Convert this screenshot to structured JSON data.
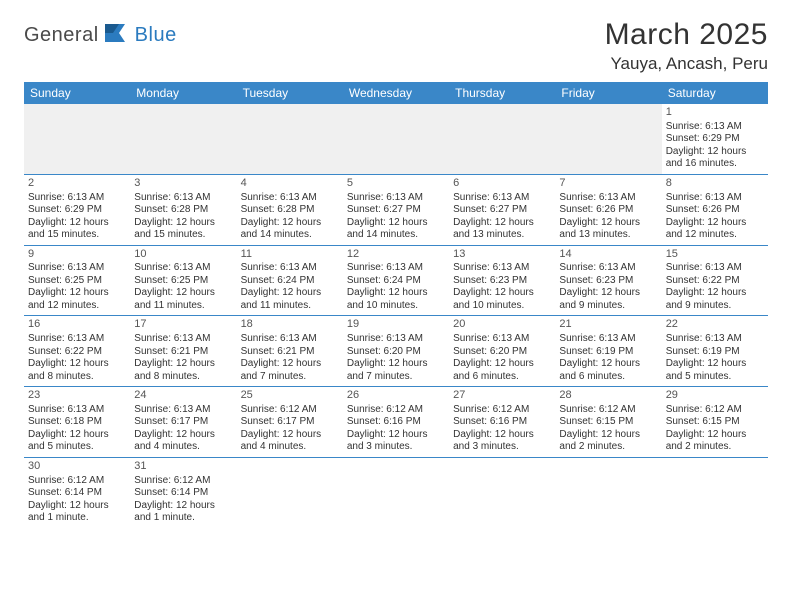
{
  "logo": {
    "part1": "General",
    "part2": "Blue"
  },
  "title": "March 2025",
  "location": "Yauya, Ancash, Peru",
  "colors": {
    "header_bg": "#3a87c8",
    "header_text": "#ffffff",
    "border": "#3a87c8",
    "brand_blue": "#2b7bbf",
    "text": "#333333",
    "empty_bg": "#f0f0f0"
  },
  "day_headers": [
    "Sunday",
    "Monday",
    "Tuesday",
    "Wednesday",
    "Thursday",
    "Friday",
    "Saturday"
  ],
  "weeks": [
    [
      null,
      null,
      null,
      null,
      null,
      null,
      {
        "d": "1",
        "sr": "6:13 AM",
        "ss": "6:29 PM",
        "dl1": "Daylight: 12 hours",
        "dl2": "and 16 minutes."
      }
    ],
    [
      {
        "d": "2",
        "sr": "6:13 AM",
        "ss": "6:29 PM",
        "dl1": "Daylight: 12 hours",
        "dl2": "and 15 minutes."
      },
      {
        "d": "3",
        "sr": "6:13 AM",
        "ss": "6:28 PM",
        "dl1": "Daylight: 12 hours",
        "dl2": "and 15 minutes."
      },
      {
        "d": "4",
        "sr": "6:13 AM",
        "ss": "6:28 PM",
        "dl1": "Daylight: 12 hours",
        "dl2": "and 14 minutes."
      },
      {
        "d": "5",
        "sr": "6:13 AM",
        "ss": "6:27 PM",
        "dl1": "Daylight: 12 hours",
        "dl2": "and 14 minutes."
      },
      {
        "d": "6",
        "sr": "6:13 AM",
        "ss": "6:27 PM",
        "dl1": "Daylight: 12 hours",
        "dl2": "and 13 minutes."
      },
      {
        "d": "7",
        "sr": "6:13 AM",
        "ss": "6:26 PM",
        "dl1": "Daylight: 12 hours",
        "dl2": "and 13 minutes."
      },
      {
        "d": "8",
        "sr": "6:13 AM",
        "ss": "6:26 PM",
        "dl1": "Daylight: 12 hours",
        "dl2": "and 12 minutes."
      }
    ],
    [
      {
        "d": "9",
        "sr": "6:13 AM",
        "ss": "6:25 PM",
        "dl1": "Daylight: 12 hours",
        "dl2": "and 12 minutes."
      },
      {
        "d": "10",
        "sr": "6:13 AM",
        "ss": "6:25 PM",
        "dl1": "Daylight: 12 hours",
        "dl2": "and 11 minutes."
      },
      {
        "d": "11",
        "sr": "6:13 AM",
        "ss": "6:24 PM",
        "dl1": "Daylight: 12 hours",
        "dl2": "and 11 minutes."
      },
      {
        "d": "12",
        "sr": "6:13 AM",
        "ss": "6:24 PM",
        "dl1": "Daylight: 12 hours",
        "dl2": "and 10 minutes."
      },
      {
        "d": "13",
        "sr": "6:13 AM",
        "ss": "6:23 PM",
        "dl1": "Daylight: 12 hours",
        "dl2": "and 10 minutes."
      },
      {
        "d": "14",
        "sr": "6:13 AM",
        "ss": "6:23 PM",
        "dl1": "Daylight: 12 hours",
        "dl2": "and 9 minutes."
      },
      {
        "d": "15",
        "sr": "6:13 AM",
        "ss": "6:22 PM",
        "dl1": "Daylight: 12 hours",
        "dl2": "and 9 minutes."
      }
    ],
    [
      {
        "d": "16",
        "sr": "6:13 AM",
        "ss": "6:22 PM",
        "dl1": "Daylight: 12 hours",
        "dl2": "and 8 minutes."
      },
      {
        "d": "17",
        "sr": "6:13 AM",
        "ss": "6:21 PM",
        "dl1": "Daylight: 12 hours",
        "dl2": "and 8 minutes."
      },
      {
        "d": "18",
        "sr": "6:13 AM",
        "ss": "6:21 PM",
        "dl1": "Daylight: 12 hours",
        "dl2": "and 7 minutes."
      },
      {
        "d": "19",
        "sr": "6:13 AM",
        "ss": "6:20 PM",
        "dl1": "Daylight: 12 hours",
        "dl2": "and 7 minutes."
      },
      {
        "d": "20",
        "sr": "6:13 AM",
        "ss": "6:20 PM",
        "dl1": "Daylight: 12 hours",
        "dl2": "and 6 minutes."
      },
      {
        "d": "21",
        "sr": "6:13 AM",
        "ss": "6:19 PM",
        "dl1": "Daylight: 12 hours",
        "dl2": "and 6 minutes."
      },
      {
        "d": "22",
        "sr": "6:13 AM",
        "ss": "6:19 PM",
        "dl1": "Daylight: 12 hours",
        "dl2": "and 5 minutes."
      }
    ],
    [
      {
        "d": "23",
        "sr": "6:13 AM",
        "ss": "6:18 PM",
        "dl1": "Daylight: 12 hours",
        "dl2": "and 5 minutes."
      },
      {
        "d": "24",
        "sr": "6:13 AM",
        "ss": "6:17 PM",
        "dl1": "Daylight: 12 hours",
        "dl2": "and 4 minutes."
      },
      {
        "d": "25",
        "sr": "6:12 AM",
        "ss": "6:17 PM",
        "dl1": "Daylight: 12 hours",
        "dl2": "and 4 minutes."
      },
      {
        "d": "26",
        "sr": "6:12 AM",
        "ss": "6:16 PM",
        "dl1": "Daylight: 12 hours",
        "dl2": "and 3 minutes."
      },
      {
        "d": "27",
        "sr": "6:12 AM",
        "ss": "6:16 PM",
        "dl1": "Daylight: 12 hours",
        "dl2": "and 3 minutes."
      },
      {
        "d": "28",
        "sr": "6:12 AM",
        "ss": "6:15 PM",
        "dl1": "Daylight: 12 hours",
        "dl2": "and 2 minutes."
      },
      {
        "d": "29",
        "sr": "6:12 AM",
        "ss": "6:15 PM",
        "dl1": "Daylight: 12 hours",
        "dl2": "and 2 minutes."
      }
    ],
    [
      {
        "d": "30",
        "sr": "6:12 AM",
        "ss": "6:14 PM",
        "dl1": "Daylight: 12 hours",
        "dl2": "and 1 minute."
      },
      {
        "d": "31",
        "sr": "6:12 AM",
        "ss": "6:14 PM",
        "dl1": "Daylight: 12 hours",
        "dl2": "and 1 minute."
      },
      null,
      null,
      null,
      null,
      null
    ]
  ],
  "labels": {
    "sunrise": "Sunrise:",
    "sunset": "Sunset:"
  }
}
